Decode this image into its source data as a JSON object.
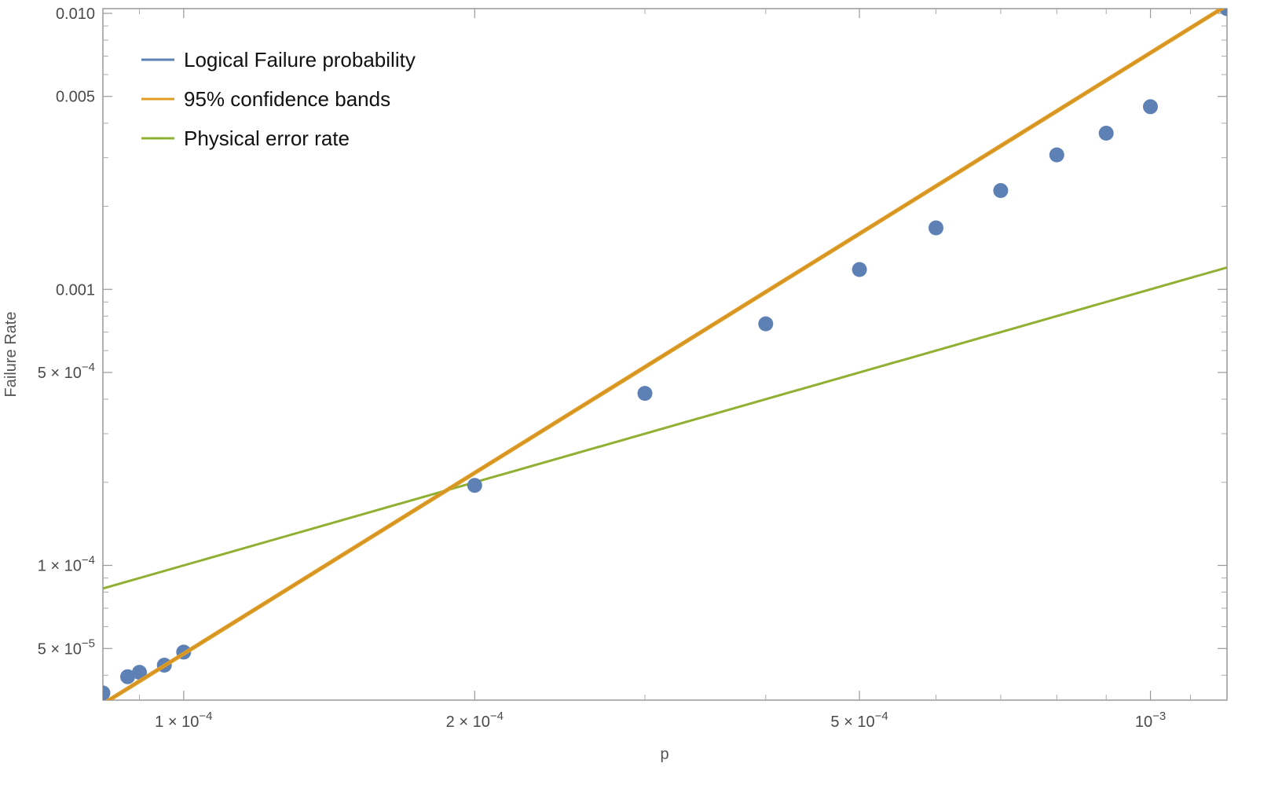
{
  "chart_data": {
    "type": "scatter",
    "xlabel": "p",
    "ylabel": "Failure Rate",
    "xscale": "log",
    "yscale": "log",
    "xlim": [
      8.25e-05,
      0.0012
    ],
    "ylim": [
      3.25e-05,
      0.0104
    ],
    "grid": false,
    "frame": true,
    "legend_position": "top-left",
    "x_ticks": [
      {
        "value": 0.0001,
        "mant": "1.",
        "exp": "−4"
      },
      {
        "value": 0.0002,
        "mant": "2.",
        "exp": "−4"
      },
      {
        "value": 0.0005,
        "mant": "5.",
        "exp": "−4"
      },
      {
        "value": 0.001,
        "mant": "10",
        "exp": "−3"
      }
    ],
    "x_minor_ticks": [
      9e-05,
      0.0003,
      0.0004,
      0.0006,
      0.0007,
      0.0008,
      0.0009,
      0.0011
    ],
    "y_ticks": [
      {
        "value": 0.01,
        "plain": "0.010"
      },
      {
        "value": 0.005,
        "plain": "0.005"
      },
      {
        "value": 0.001,
        "plain": "0.001"
      },
      {
        "value": 0.0005,
        "mant": "5.",
        "exp": "−4"
      },
      {
        "value": 0.0001,
        "mant": "1.",
        "exp": "−4"
      },
      {
        "value": 5e-05,
        "mant": "5.",
        "exp": "−5"
      }
    ],
    "y_minor_ticks": [
      4e-05,
      6e-05,
      7e-05,
      8e-05,
      9e-05,
      0.0002,
      0.0003,
      0.0004,
      0.0006,
      0.0007,
      0.0008,
      0.0009,
      0.002,
      0.003,
      0.004,
      0.006,
      0.007,
      0.008,
      0.009
    ],
    "series": [
      {
        "name": "Logical Failure probability",
        "kind": "points",
        "color": "#5e81b5",
        "points": [
          {
            "x": 8.25e-05,
            "y": 3.45e-05
          },
          {
            "x": 8.75e-05,
            "y": 3.95e-05
          },
          {
            "x": 9e-05,
            "y": 4.1e-05
          },
          {
            "x": 9.55e-05,
            "y": 4.35e-05
          },
          {
            "x": 0.0001,
            "y": 4.85e-05
          },
          {
            "x": 0.0002,
            "y": 0.000195
          },
          {
            "x": 0.0003,
            "y": 0.00042
          },
          {
            "x": 0.0004,
            "y": 0.00075
          },
          {
            "x": 0.0005,
            "y": 0.00118
          },
          {
            "x": 0.0006,
            "y": 0.00167
          },
          {
            "x": 0.0007,
            "y": 0.00228
          },
          {
            "x": 0.0008,
            "y": 0.00307
          },
          {
            "x": 0.0009,
            "y": 0.00368
          },
          {
            "x": 0.001,
            "y": 0.00459
          },
          {
            "x": 0.0012,
            "y": 0.0104
          }
        ]
      },
      {
        "name": "95% confidence bands",
        "kind": "line",
        "color": "#e19c24",
        "points": [
          {
            "x": 8.25e-05,
            "y": 3.15e-05
          },
          {
            "x": 0.0012,
            "y": 0.0107
          }
        ]
      },
      {
        "name": "Physical error rate",
        "kind": "line",
        "color": "#8fb032",
        "points": [
          {
            "x": 8.25e-05,
            "y": 8.25e-05
          },
          {
            "x": 0.0012,
            "y": 0.0012
          }
        ]
      }
    ]
  }
}
